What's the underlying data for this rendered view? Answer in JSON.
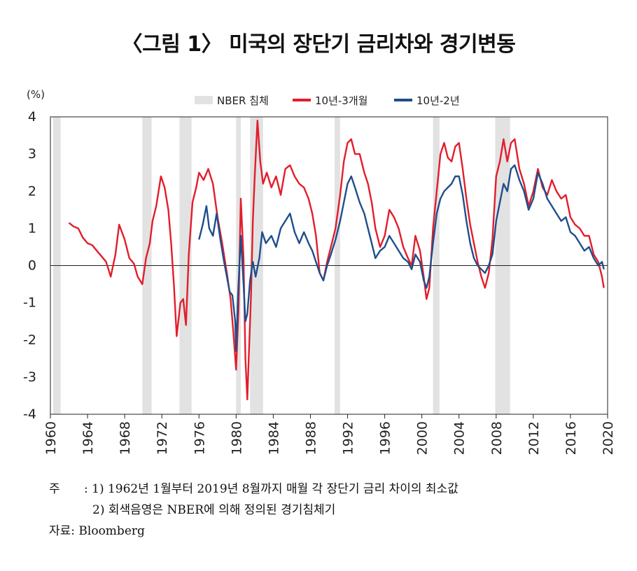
{
  "title": "〈그림 1〉 미국의 장단기 금리차와 경기변동",
  "notes": {
    "prefix": "주",
    "note1": ": 1) 1962년 1월부터 2019년 8월까지 매월 각 장단기 금리 차이의 최소값",
    "note2": "2) 회색음영은 NBER에 의해 정의된 경기침체기",
    "source": "자료: Bloomberg"
  },
  "chart_data": {
    "type": "line",
    "title": "",
    "ylabel": "(%)",
    "xlabel": "",
    "xlim": [
      1960,
      2020
    ],
    "ylim": [
      -4,
      4
    ],
    "xticks": [
      1960,
      1964,
      1968,
      1972,
      1976,
      1980,
      1984,
      1988,
      1992,
      1996,
      2000,
      2004,
      2008,
      2012,
      2016,
      2020
    ],
    "yticks": [
      4,
      3,
      2,
      1,
      0,
      -1,
      -2,
      -3,
      -4
    ],
    "legend": [
      "NBER 침체",
      "10년-3개월",
      "10년-2년"
    ],
    "legend_position": "top-center",
    "recessions": [
      [
        1960.3,
        1961.1
      ],
      [
        1969.9,
        1970.9
      ],
      [
        1973.9,
        1975.2
      ],
      [
        1980.0,
        1980.5
      ],
      [
        1981.5,
        1982.9
      ],
      [
        1990.6,
        1991.2
      ],
      [
        2001.2,
        2001.9
      ],
      [
        2007.9,
        2009.5
      ]
    ],
    "series": [
      {
        "name": "10년-3개월",
        "color": "#e31d2b",
        "points": [
          [
            1962.0,
            1.15
          ],
          [
            1962.5,
            1.05
          ],
          [
            1963.0,
            1.0
          ],
          [
            1963.5,
            0.75
          ],
          [
            1964.0,
            0.6
          ],
          [
            1964.5,
            0.55
          ],
          [
            1965.0,
            0.4
          ],
          [
            1965.5,
            0.25
          ],
          [
            1966.0,
            0.1
          ],
          [
            1966.5,
            -0.3
          ],
          [
            1967.0,
            0.3
          ],
          [
            1967.4,
            1.1
          ],
          [
            1968.0,
            0.7
          ],
          [
            1968.5,
            0.2
          ],
          [
            1969.0,
            0.05
          ],
          [
            1969.4,
            -0.3
          ],
          [
            1969.9,
            -0.5
          ],
          [
            1970.3,
            0.2
          ],
          [
            1970.7,
            0.6
          ],
          [
            1971.0,
            1.2
          ],
          [
            1971.4,
            1.6
          ],
          [
            1971.9,
            2.4
          ],
          [
            1972.3,
            2.1
          ],
          [
            1972.7,
            1.5
          ],
          [
            1973.0,
            0.6
          ],
          [
            1973.3,
            -0.5
          ],
          [
            1973.6,
            -1.9
          ],
          [
            1974.0,
            -1.0
          ],
          [
            1974.3,
            -0.9
          ],
          [
            1974.6,
            -1.6
          ],
          [
            1974.9,
            0.3
          ],
          [
            1975.3,
            1.7
          ],
          [
            1975.7,
            2.1
          ],
          [
            1976.0,
            2.5
          ],
          [
            1976.5,
            2.3
          ],
          [
            1977.0,
            2.6
          ],
          [
            1977.5,
            2.2
          ],
          [
            1978.0,
            1.3
          ],
          [
            1978.5,
            0.6
          ],
          [
            1979.0,
            -0.2
          ],
          [
            1979.4,
            -0.9
          ],
          [
            1979.7,
            -1.8
          ],
          [
            1980.0,
            -2.8
          ],
          [
            1980.25,
            -1.2
          ],
          [
            1980.5,
            1.8
          ],
          [
            1980.8,
            0.2
          ],
          [
            1981.0,
            -2.5
          ],
          [
            1981.2,
            -3.6
          ],
          [
            1981.4,
            -2.2
          ],
          [
            1981.6,
            -0.8
          ],
          [
            1981.8,
            1.2
          ],
          [
            1982.0,
            2.4
          ],
          [
            1982.3,
            3.9
          ],
          [
            1982.6,
            2.8
          ],
          [
            1982.9,
            2.2
          ],
          [
            1983.3,
            2.5
          ],
          [
            1983.8,
            2.1
          ],
          [
            1984.3,
            2.4
          ],
          [
            1984.8,
            1.9
          ],
          [
            1985.3,
            2.6
          ],
          [
            1985.8,
            2.7
          ],
          [
            1986.3,
            2.4
          ],
          [
            1986.8,
            2.2
          ],
          [
            1987.3,
            2.1
          ],
          [
            1987.8,
            1.8
          ],
          [
            1988.2,
            1.4
          ],
          [
            1988.6,
            0.8
          ],
          [
            1989.0,
            -0.2
          ],
          [
            1989.4,
            -0.4
          ],
          [
            1989.8,
            0.1
          ],
          [
            1990.2,
            0.5
          ],
          [
            1990.7,
            1.0
          ],
          [
            1991.2,
            1.9
          ],
          [
            1991.6,
            2.8
          ],
          [
            1992.0,
            3.3
          ],
          [
            1992.4,
            3.4
          ],
          [
            1992.8,
            3.0
          ],
          [
            1993.3,
            3.0
          ],
          [
            1993.8,
            2.5
          ],
          [
            1994.2,
            2.2
          ],
          [
            1994.6,
            1.7
          ],
          [
            1995.0,
            1.0
          ],
          [
            1995.5,
            0.5
          ],
          [
            1996.0,
            0.8
          ],
          [
            1996.5,
            1.5
          ],
          [
            1997.0,
            1.3
          ],
          [
            1997.5,
            1.0
          ],
          [
            1998.0,
            0.5
          ],
          [
            1998.5,
            0.2
          ],
          [
            1998.9,
            0.0
          ],
          [
            1999.3,
            0.8
          ],
          [
            1999.8,
            0.4
          ],
          [
            2000.2,
            -0.3
          ],
          [
            2000.5,
            -0.9
          ],
          [
            2000.8,
            -0.6
          ],
          [
            2001.2,
            1.0
          ],
          [
            2001.6,
            2.0
          ],
          [
            2002.0,
            3.0
          ],
          [
            2002.4,
            3.3
          ],
          [
            2002.8,
            2.9
          ],
          [
            2003.2,
            2.8
          ],
          [
            2003.6,
            3.2
          ],
          [
            2004.0,
            3.3
          ],
          [
            2004.4,
            2.6
          ],
          [
            2004.8,
            1.8
          ],
          [
            2005.2,
            1.1
          ],
          [
            2005.6,
            0.6
          ],
          [
            2006.0,
            0.1
          ],
          [
            2006.4,
            -0.3
          ],
          [
            2006.8,
            -0.6
          ],
          [
            2007.2,
            -0.2
          ],
          [
            2007.6,
            0.7
          ],
          [
            2008.0,
            2.4
          ],
          [
            2008.4,
            2.8
          ],
          [
            2008.8,
            3.4
          ],
          [
            2009.2,
            2.8
          ],
          [
            2009.6,
            3.3
          ],
          [
            2010.0,
            3.4
          ],
          [
            2010.5,
            2.6
          ],
          [
            2011.0,
            2.2
          ],
          [
            2011.5,
            1.6
          ],
          [
            2012.0,
            2.0
          ],
          [
            2012.5,
            2.6
          ],
          [
            2013.0,
            2.1
          ],
          [
            2013.5,
            1.9
          ],
          [
            2014.0,
            2.3
          ],
          [
            2014.5,
            2.0
          ],
          [
            2015.0,
            1.8
          ],
          [
            2015.5,
            1.9
          ],
          [
            2016.0,
            1.3
          ],
          [
            2016.5,
            1.1
          ],
          [
            2017.0,
            1.0
          ],
          [
            2017.5,
            0.8
          ],
          [
            2018.0,
            0.8
          ],
          [
            2018.5,
            0.3
          ],
          [
            2019.0,
            0.1
          ],
          [
            2019.4,
            -0.3
          ],
          [
            2019.6,
            -0.6
          ]
        ]
      },
      {
        "name": "10년-2년",
        "color": "#1f4e8c",
        "points": [
          [
            1976.0,
            0.7
          ],
          [
            1976.4,
            1.1
          ],
          [
            1976.8,
            1.6
          ],
          [
            1977.1,
            1.0
          ],
          [
            1977.5,
            0.8
          ],
          [
            1977.9,
            1.4
          ],
          [
            1978.3,
            0.7
          ],
          [
            1978.7,
            0.1
          ],
          [
            1979.0,
            -0.3
          ],
          [
            1979.3,
            -0.7
          ],
          [
            1979.6,
            -0.8
          ],
          [
            1979.9,
            -1.5
          ],
          [
            1980.0,
            -2.3
          ],
          [
            1980.2,
            -0.8
          ],
          [
            1980.5,
            0.8
          ],
          [
            1980.8,
            -0.5
          ],
          [
            1981.0,
            -1.5
          ],
          [
            1981.2,
            -1.3
          ],
          [
            1981.5,
            -0.4
          ],
          [
            1981.8,
            0.1
          ],
          [
            1982.1,
            -0.3
          ],
          [
            1982.5,
            0.2
          ],
          [
            1982.8,
            0.9
          ],
          [
            1983.2,
            0.6
          ],
          [
            1983.8,
            0.8
          ],
          [
            1984.3,
            0.5
          ],
          [
            1984.8,
            1.0
          ],
          [
            1985.3,
            1.2
          ],
          [
            1985.8,
            1.4
          ],
          [
            1986.3,
            0.9
          ],
          [
            1986.8,
            0.6
          ],
          [
            1987.3,
            0.9
          ],
          [
            1987.8,
            0.6
          ],
          [
            1988.2,
            0.4
          ],
          [
            1988.6,
            0.1
          ],
          [
            1989.0,
            -0.2
          ],
          [
            1989.4,
            -0.4
          ],
          [
            1989.8,
            0.0
          ],
          [
            1990.2,
            0.3
          ],
          [
            1990.7,
            0.7
          ],
          [
            1991.2,
            1.2
          ],
          [
            1991.6,
            1.7
          ],
          [
            1992.0,
            2.2
          ],
          [
            1992.4,
            2.4
          ],
          [
            1992.8,
            2.1
          ],
          [
            1993.3,
            1.7
          ],
          [
            1993.8,
            1.4
          ],
          [
            1994.2,
            1.0
          ],
          [
            1994.6,
            0.6
          ],
          [
            1995.0,
            0.2
          ],
          [
            1995.5,
            0.4
          ],
          [
            1996.0,
            0.5
          ],
          [
            1996.5,
            0.8
          ],
          [
            1997.0,
            0.6
          ],
          [
            1997.5,
            0.4
          ],
          [
            1998.0,
            0.2
          ],
          [
            1998.5,
            0.1
          ],
          [
            1998.9,
            -0.1
          ],
          [
            1999.3,
            0.3
          ],
          [
            1999.8,
            0.1
          ],
          [
            2000.2,
            -0.4
          ],
          [
            2000.5,
            -0.6
          ],
          [
            2000.8,
            -0.3
          ],
          [
            2001.2,
            0.6
          ],
          [
            2001.6,
            1.4
          ],
          [
            2002.0,
            1.8
          ],
          [
            2002.4,
            2.0
          ],
          [
            2002.8,
            2.1
          ],
          [
            2003.2,
            2.2
          ],
          [
            2003.6,
            2.4
          ],
          [
            2004.0,
            2.4
          ],
          [
            2004.4,
            1.9
          ],
          [
            2004.8,
            1.2
          ],
          [
            2005.2,
            0.6
          ],
          [
            2005.6,
            0.2
          ],
          [
            2006.0,
            0.0
          ],
          [
            2006.4,
            -0.1
          ],
          [
            2006.8,
            -0.2
          ],
          [
            2007.2,
            0.0
          ],
          [
            2007.6,
            0.3
          ],
          [
            2008.0,
            1.2
          ],
          [
            2008.4,
            1.7
          ],
          [
            2008.8,
            2.2
          ],
          [
            2009.2,
            2.0
          ],
          [
            2009.6,
            2.6
          ],
          [
            2010.0,
            2.7
          ],
          [
            2010.5,
            2.3
          ],
          [
            2011.0,
            2.0
          ],
          [
            2011.5,
            1.5
          ],
          [
            2012.0,
            1.8
          ],
          [
            2012.5,
            2.5
          ],
          [
            2013.0,
            2.2
          ],
          [
            2013.5,
            1.8
          ],
          [
            2014.0,
            1.6
          ],
          [
            2014.5,
            1.4
          ],
          [
            2015.0,
            1.2
          ],
          [
            2015.5,
            1.3
          ],
          [
            2016.0,
            0.9
          ],
          [
            2016.5,
            0.8
          ],
          [
            2017.0,
            0.6
          ],
          [
            2017.5,
            0.4
          ],
          [
            2018.0,
            0.5
          ],
          [
            2018.5,
            0.2
          ],
          [
            2019.0,
            0.0
          ],
          [
            2019.4,
            0.1
          ],
          [
            2019.6,
            -0.1
          ]
        ]
      }
    ]
  }
}
